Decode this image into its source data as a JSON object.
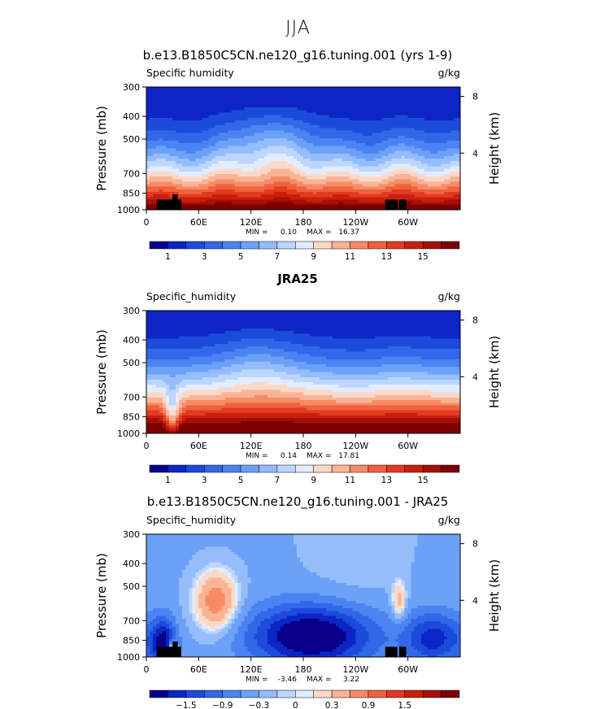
{
  "figure": {
    "suptitle": "JJA"
  },
  "chart_data": [
    {
      "type": "contour",
      "title": "b.e13.B1850C5CN.ne120_g16.tuning.001 (yrs 1-9)",
      "left_label": "Specific humidity",
      "right_label": "g/kg",
      "ylabel": "Pressure (mb)",
      "ylabel_right": "Height (km)",
      "x_ticks": [
        "0",
        "60E",
        "120E",
        "180",
        "120W",
        "60W"
      ],
      "x_tick_lons": [
        0,
        60,
        120,
        180,
        240,
        300
      ],
      "xlim": [
        0,
        360
      ],
      "y_ticks": [
        "300",
        "400",
        "500",
        "700",
        "850",
        "1000"
      ],
      "y_tick_values": [
        300,
        400,
        500,
        700,
        850,
        1000
      ],
      "ylim": [
        300,
        1000
      ],
      "y_ticks_right": [
        "8",
        "4"
      ],
      "y_right_values": [
        8,
        4
      ],
      "stats": {
        "min_label": "MIN =",
        "min": "0.10",
        "max_label": "MAX =",
        "max": "16.37"
      },
      "colorbar_labels": [
        "1",
        "3",
        "5",
        "7",
        "9",
        "11",
        "13",
        "15"
      ],
      "contour_levels": [
        0,
        1,
        2,
        3,
        4,
        5,
        6,
        7,
        8,
        9,
        10,
        11,
        12,
        13,
        14,
        15,
        16
      ],
      "field": "model",
      "terrain": true
    },
    {
      "type": "contour",
      "title": "JRA25",
      "left_label": "Specific_humidity",
      "right_label": "g/kg",
      "ylabel": "Pressure (mb)",
      "ylabel_right": "Height (km)",
      "x_ticks": [
        "0",
        "60E",
        "120E",
        "180",
        "120W",
        "60W"
      ],
      "x_tick_lons": [
        0,
        60,
        120,
        180,
        240,
        300
      ],
      "xlim": [
        0,
        360
      ],
      "y_ticks": [
        "300",
        "400",
        "500",
        "700",
        "850",
        "1000"
      ],
      "y_tick_values": [
        300,
        400,
        500,
        700,
        850,
        1000
      ],
      "ylim": [
        300,
        1000
      ],
      "y_ticks_right": [
        "8",
        "4"
      ],
      "y_right_values": [
        8,
        4
      ],
      "stats": {
        "min_label": "MIN =",
        "min": "0.14",
        "max_label": "MAX =",
        "max": "17.81"
      },
      "colorbar_labels": [
        "1",
        "3",
        "5",
        "7",
        "9",
        "11",
        "13",
        "15"
      ],
      "contour_levels": [
        0,
        1,
        2,
        3,
        4,
        5,
        6,
        7,
        8,
        9,
        10,
        11,
        12,
        13,
        14,
        15,
        16
      ],
      "field": "obs",
      "terrain": false
    },
    {
      "type": "contour",
      "title": "b.e13.B1850C5CN.ne120_g16.tuning.001 - JRA25",
      "left_label": "Specific_humidity",
      "right_label": "g/kg",
      "ylabel": "Pressure (mb)",
      "ylabel_right": "Height (km)",
      "x_ticks": [
        "0",
        "60E",
        "120E",
        "180",
        "120W",
        "60W"
      ],
      "x_tick_lons": [
        0,
        60,
        120,
        180,
        240,
        300
      ],
      "xlim": [
        0,
        360
      ],
      "y_ticks": [
        "300",
        "400",
        "500",
        "700",
        "850",
        "1000"
      ],
      "y_tick_values": [
        300,
        400,
        500,
        700,
        850,
        1000
      ],
      "ylim": [
        300,
        1000
      ],
      "y_ticks_right": [
        "8",
        "4"
      ],
      "y_right_values": [
        8,
        4
      ],
      "stats": {
        "min_label": "MIN =",
        "min": "-3.46",
        "max_label": "MAX =",
        "max": "3.22"
      },
      "colorbar_labels": [
        "−1.5",
        "−0.9",
        "−0.3",
        "0",
        "0.3",
        "0.9",
        "1.5"
      ],
      "contour_levels": [
        -1.8,
        -1.5,
        -1.2,
        -0.9,
        -0.6,
        -0.3,
        -0.1,
        0,
        0.1,
        0.3,
        0.6,
        0.9,
        1.2,
        1.5,
        1.8
      ],
      "field": "diff",
      "terrain": true
    }
  ],
  "colormap": [
    "#08008c",
    "#0c25c4",
    "#1c4bdc",
    "#3168e8",
    "#4b84f2",
    "#6ca1f8",
    "#95bdfb",
    "#bcd6fd",
    "#e3ecff",
    "#fbd9c8",
    "#f9b496",
    "#f68b66",
    "#f0613e",
    "#e23b21",
    "#c8200d",
    "#a50f08",
    "#7a0000"
  ],
  "terrain_color": "#000000"
}
